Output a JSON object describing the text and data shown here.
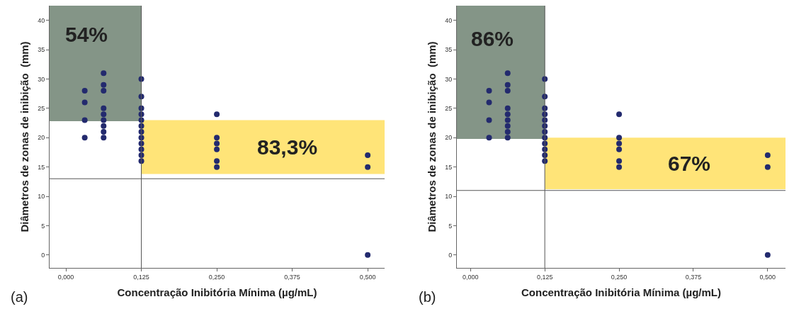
{
  "chart_data": [
    {
      "type": "scatter",
      "xlabel": "Concentração Inibitória Mínima (µg/mL)",
      "ylabel": "Diâmetros de zonas de inibição  (mm)",
      "annotations": [
        "(a)"
      ],
      "x": [
        0.03125,
        0.03125,
        0.03125,
        0.03125,
        0.0625,
        0.0625,
        0.0625,
        0.0625,
        0.0625,
        0.0625,
        0.0625,
        0.0625,
        0.0625,
        0.125,
        0.125,
        0.125,
        0.125,
        0.125,
        0.125,
        0.125,
        0.125,
        0.125,
        0.125,
        0.125,
        0.125,
        0.25,
        0.25,
        0.25,
        0.25,
        0.25,
        0.25,
        0.5,
        0.5,
        0.5
      ],
      "series": [
        {
          "color": "#232a6e",
          "values": [
            20,
            23,
            26,
            28,
            20,
            21,
            22,
            23,
            24,
            25,
            28,
            29,
            31,
            16,
            17,
            18,
            19,
            20,
            21,
            22,
            23,
            24,
            25,
            27,
            30,
            15,
            16,
            18,
            19,
            20,
            24,
            0,
            15,
            17
          ]
        }
      ],
      "xlim": [
        -0.027,
        0.528
      ],
      "ylim": [
        -2.2,
        42.5
      ],
      "grid": false,
      "marker": "circle",
      "xticks": [
        {
          "value": 0,
          "label": "0,000"
        },
        {
          "value": 0.125,
          "label": "0,125"
        },
        {
          "value": 0.25,
          "label": "0,250"
        },
        {
          "value": 0.375,
          "label": "0,375"
        },
        {
          "value": 0.5,
          "label": "0,500"
        }
      ],
      "yticks": [
        0,
        5,
        10,
        15,
        20,
        25,
        30,
        35,
        40
      ],
      "ref_lines": [
        {
          "axis": "y",
          "value": 13
        },
        {
          "axis": "x",
          "value": 0.125
        }
      ],
      "bands": [
        {
          "axis": "y",
          "from": 22.8,
          "to": 42.5,
          "label": "54%",
          "color": "#6f8272"
        },
        {
          "axis": "y",
          "from": 13.8,
          "to": 23,
          "label": "83,3%",
          "color": "#ffdf60"
        }
      ]
    },
    {
      "type": "scatter",
      "xlabel": "Concentração Inibitória Mínima (µg/mL)",
      "ylabel": "Diâmetros de zonas de inibição  (mm)",
      "annotations": [
        "(b)"
      ],
      "x": [
        0.03125,
        0.03125,
        0.03125,
        0.03125,
        0.0625,
        0.0625,
        0.0625,
        0.0625,
        0.0625,
        0.0625,
        0.0625,
        0.0625,
        0.0625,
        0.125,
        0.125,
        0.125,
        0.125,
        0.125,
        0.125,
        0.125,
        0.125,
        0.125,
        0.125,
        0.125,
        0.125,
        0.25,
        0.25,
        0.25,
        0.25,
        0.25,
        0.25,
        0.5,
        0.5,
        0.5
      ],
      "series": [
        {
          "color": "#232a6e",
          "values": [
            20,
            23,
            26,
            28,
            20,
            21,
            22,
            23,
            24,
            25,
            28,
            29,
            31,
            16,
            17,
            18,
            19,
            20,
            21,
            22,
            23,
            24,
            25,
            27,
            30,
            15,
            16,
            18,
            19,
            20,
            24,
            0,
            15,
            17
          ]
        }
      ],
      "xlim": [
        -0.023,
        0.53
      ],
      "ylim": [
        -2.2,
        42.5
      ],
      "grid": false,
      "marker": "circle",
      "xticks": [
        {
          "value": 0,
          "label": "0,000"
        },
        {
          "value": 0.125,
          "label": "0,125"
        },
        {
          "value": 0.25,
          "label": "0,250"
        },
        {
          "value": 0.375,
          "label": "0,375"
        },
        {
          "value": 0.5,
          "label": "0,500"
        }
      ],
      "yticks": [
        0,
        5,
        10,
        15,
        20,
        25,
        30,
        35,
        40
      ],
      "ref_lines": [
        {
          "axis": "y",
          "value": 11
        },
        {
          "axis": "x",
          "value": 0.125
        }
      ],
      "bands": [
        {
          "axis": "y",
          "from": 19.8,
          "to": 42.5,
          "label": "86%",
          "color": "#6f8272"
        },
        {
          "axis": "y",
          "from": 11.2,
          "to": 20,
          "label": "67%",
          "color": "#ffdf60"
        }
      ]
    }
  ]
}
